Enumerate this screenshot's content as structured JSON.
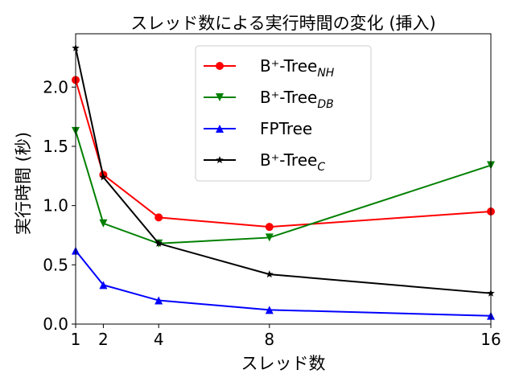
{
  "chart_data": {
    "type": "line",
    "title": "スレッド数による実行時間の変化 (挿入)",
    "xlabel": "スレッド数",
    "ylabel": "実行時間 (秒)",
    "x": [
      1,
      2,
      4,
      8,
      16
    ],
    "xticks": [
      "1",
      "2",
      "4",
      "8",
      "16"
    ],
    "yticks": [
      "0.0",
      "0.5",
      "1.0",
      "1.5",
      "2.0"
    ],
    "xlim": [
      1,
      16
    ],
    "ylim": [
      0,
      2.45
    ],
    "legend_position": "upper-center",
    "grid": false,
    "series": [
      {
        "name": "B⁺-Tree",
        "name_sub": "NH",
        "color": "#ff0000",
        "marker": "circle",
        "values": [
          2.06,
          1.26,
          0.9,
          0.82,
          0.95
        ]
      },
      {
        "name": "B⁺-Tree",
        "name_sub": "DB",
        "color": "#008000",
        "marker": "triangle-down",
        "values": [
          1.63,
          0.85,
          0.68,
          0.73,
          1.34
        ]
      },
      {
        "name": "FPTree",
        "name_sub": "",
        "color": "#0000ff",
        "marker": "triangle-up",
        "values": [
          0.62,
          0.33,
          0.2,
          0.12,
          0.07
        ]
      },
      {
        "name": "B⁺-Tree",
        "name_sub": "C",
        "color": "#000000",
        "marker": "star",
        "values": [
          2.33,
          1.24,
          0.68,
          0.42,
          0.26
        ]
      }
    ]
  }
}
